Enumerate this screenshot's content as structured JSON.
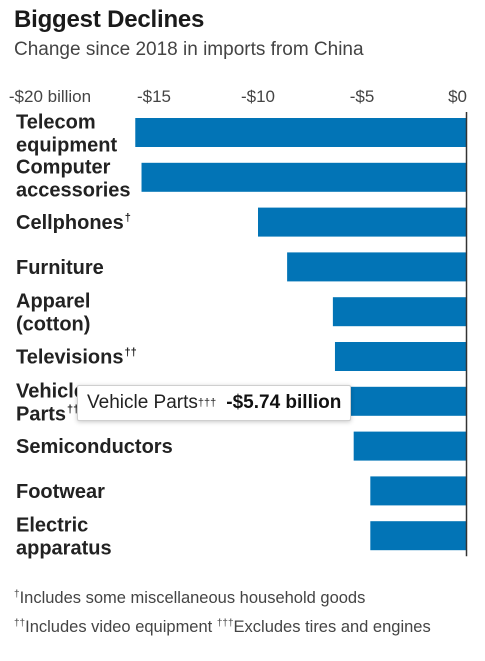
{
  "header": {
    "title": "Biggest Declines",
    "subtitle": "Change since 2018 in imports from China"
  },
  "chart_data": {
    "type": "bar",
    "orientation": "horizontal",
    "title": "Biggest Declines",
    "subtitle": "Change since 2018 in imports from China",
    "unit": "billion USD",
    "xlim": [
      -20,
      0
    ],
    "ticks": [
      {
        "value": -20,
        "label": "-$20 billion"
      },
      {
        "value": -15,
        "label": "-$15"
      },
      {
        "value": -10,
        "label": "-$10"
      },
      {
        "value": -5,
        "label": "-$5"
      },
      {
        "value": 0,
        "label": "$0"
      }
    ],
    "color": "#0274b6",
    "categories": [
      {
        "lines": [
          "Telecom",
          "equipment"
        ],
        "mark": ""
      },
      {
        "lines": [
          "Computer",
          "accessories"
        ],
        "mark": ""
      },
      {
        "lines": [
          "Cellphones"
        ],
        "mark": "†"
      },
      {
        "lines": [
          "Furniture"
        ],
        "mark": ""
      },
      {
        "lines": [
          "Apparel",
          "(cotton)"
        ],
        "mark": ""
      },
      {
        "lines": [
          "Televisions"
        ],
        "mark": "††"
      },
      {
        "lines": [
          "Vehicle",
          "Parts"
        ],
        "mark": "†††"
      },
      {
        "lines": [
          "Semiconductors"
        ],
        "mark": ""
      },
      {
        "lines": [
          "Footwear"
        ],
        "mark": ""
      },
      {
        "lines": [
          "Electric",
          "apparatus"
        ],
        "mark": ""
      }
    ],
    "values": [
      -15.9,
      -15.6,
      -10.0,
      -8.6,
      -6.4,
      -6.3,
      -5.74,
      -5.4,
      -4.6,
      -4.6
    ]
  },
  "tooltip": {
    "label": "Vehicle Parts",
    "mark": "†††",
    "value": "-$5.74 billion"
  },
  "footnotes": {
    "note1_mark": "†",
    "note1_text": "Includes some miscellaneous household goods",
    "note2_mark": "††",
    "note2_text": "Includes video equipment",
    "note3_mark": "†††",
    "note3_text": "Excludes tires and engines"
  }
}
